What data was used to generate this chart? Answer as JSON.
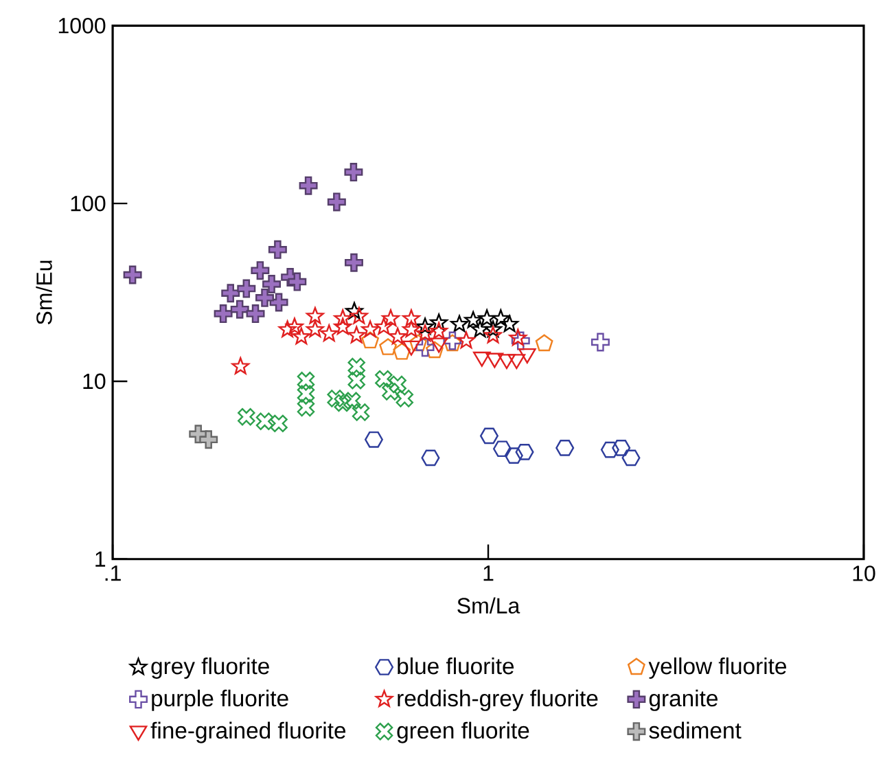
{
  "chart_data": {
    "type": "scatter",
    "xlabel": "Sm/La",
    "ylabel": "Sm/Eu",
    "log": "xy",
    "xlim": [
      0.1,
      10
    ],
    "ylim": [
      1,
      1000
    ],
    "xticks": [
      {
        "value": 0.1,
        "label": ".1"
      },
      1,
      10
    ],
    "yticks": [
      1,
      10,
      100,
      1000
    ],
    "legend": "bottom",
    "series": [
      {
        "name": "grey fluorite",
        "color": "#000000",
        "marker": "star",
        "x": [
          0.44,
          0.679,
          0.739,
          0.838,
          0.912,
          0.951,
          0.992,
          1.03,
          1.08,
          1.14
        ],
        "values": [
          24.7,
          20.2,
          21.3,
          20.9,
          22.0,
          19.5,
          22.5,
          19.5,
          22.5,
          20.9
        ]
      },
      {
        "name": "blue fluorite",
        "color": "#2e3d9c",
        "x": [
          0.496,
          0.702,
          1.006,
          1.09,
          1.17,
          1.25,
          1.6,
          2.11,
          2.26,
          2.4
        ],
        "values": [
          4.7,
          3.71,
          4.93,
          4.17,
          3.82,
          4.0,
          4.22,
          4.12,
          4.22,
          3.71
        ]
      },
      {
        "name": "yellow fluorite",
        "color": "#f08020",
        "x": [
          0.485,
          0.541,
          0.589,
          0.651,
          0.72,
          0.803,
          1.41
        ],
        "values": [
          16.9,
          15.5,
          14.6,
          16.3,
          14.9,
          16.3,
          16.3
        ]
      },
      {
        "name": "purple fluorite",
        "color": "#6a4fa5",
        "x": [
          0.679,
          0.803,
          1.22,
          1.99
        ],
        "values": [
          15.5,
          16.9,
          16.9,
          16.6
        ]
      },
      {
        "name": "reddish-grey fluorite",
        "color": "#e02020",
        "marker": "star",
        "x": [
          0.219,
          0.292,
          0.305,
          0.318,
          0.346,
          0.377,
          0.41,
          0.446,
          0.485,
          0.527,
          0.574,
          0.624,
          0.679,
          0.739,
          0.41,
          0.453,
          0.55,
          0.624,
          0.346,
          0.874,
          1.03,
          1.2
        ],
        "values": [
          12.1,
          19.5,
          20.2,
          17.8,
          19.5,
          18.5,
          20.2,
          18.1,
          19.5,
          20.2,
          17.8,
          19.5,
          18.5,
          19.1,
          22.5,
          23.2,
          22.5,
          22.5,
          23.2,
          16.9,
          18.1,
          17.5
        ]
      },
      {
        "name": "granite",
        "color": "#9b70c0",
        "marker": "cross",
        "x": [
          0.113,
          0.332,
          0.395,
          0.438,
          0.439,
          0.275,
          0.247,
          0.297,
          0.265,
          0.31,
          0.206,
          0.227,
          0.277,
          0.197,
          0.218,
          0.24,
          0.254
        ],
        "values": [
          39.7,
          126,
          102,
          150,
          46.5,
          55,
          42,
          38.5,
          35.2,
          36.3,
          31.3,
          33.2,
          27.8,
          24.0,
          25.4,
          24.0,
          29.5
        ]
      },
      {
        "name": "fine-grained fluorite",
        "color": "#e02020",
        "marker": "triangle",
        "x": [
          0.624,
          0.739,
          0.962,
          1.04,
          1.12,
          1.19,
          1.27
        ],
        "values": [
          15.7,
          16.3,
          13.6,
          13.4,
          13.2,
          13.2,
          14.2
        ]
      },
      {
        "name": "green fluorite",
        "color": "#2ca04c",
        "x": [
          0.227,
          0.254,
          0.277,
          0.327,
          0.327,
          0.327,
          0.446,
          0.446,
          0.41,
          0.434,
          0.458,
          0.527,
          0.55,
          0.574,
          0.599,
          0.393
        ],
        "values": [
          6.31,
          5.95,
          5.79,
          10.1,
          8.5,
          7.1,
          12.1,
          10.1,
          7.55,
          7.77,
          6.7,
          10.3,
          8.75,
          9.6,
          8.0,
          8.0
        ]
      },
      {
        "name": "sediment",
        "color": "#bbbbbb",
        "marker": "cross",
        "x": [
          0.169,
          0.18
        ],
        "values": [
          5.05,
          4.7
        ]
      }
    ]
  }
}
